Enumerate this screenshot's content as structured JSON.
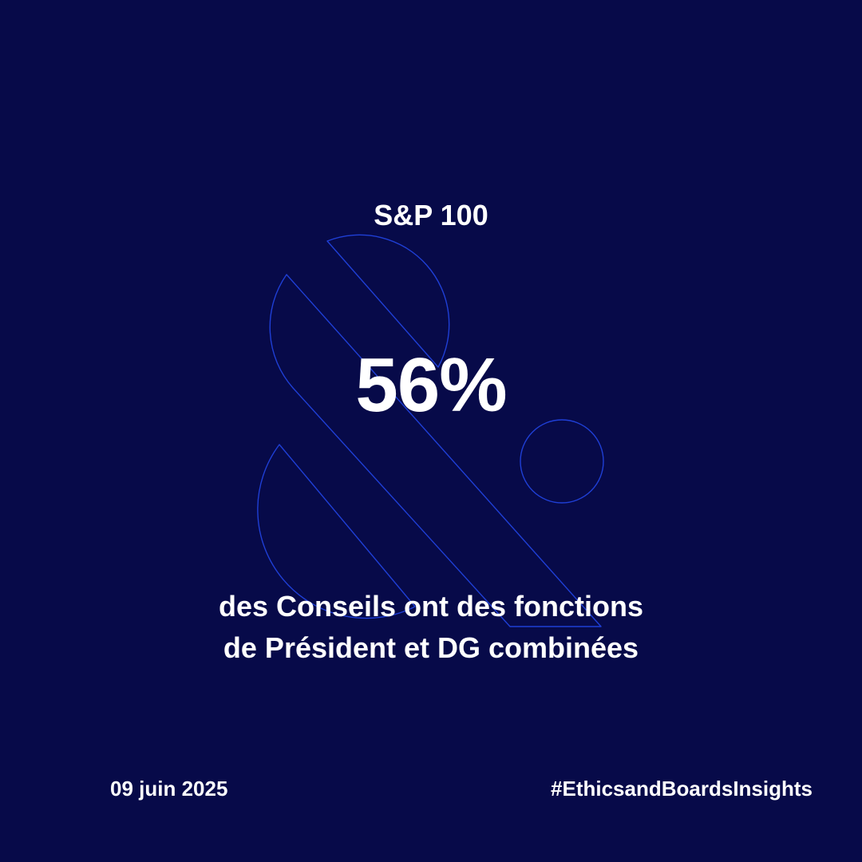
{
  "header": {
    "subtitle": "S&P 100"
  },
  "statistic": {
    "value": "56%",
    "description_lines": [
      "des Conseils ont des fonctions",
      "de Président et DG combinées"
    ]
  },
  "footer": {
    "date": "09 juin 2025",
    "hashtag": "#EthicsandBoardsInsights"
  },
  "colors": {
    "background": "#070a49",
    "text": "#ffffff",
    "logo_outline": "#1f3fd6"
  },
  "icons": {
    "background_mark": "ampersand-outline-icon"
  }
}
